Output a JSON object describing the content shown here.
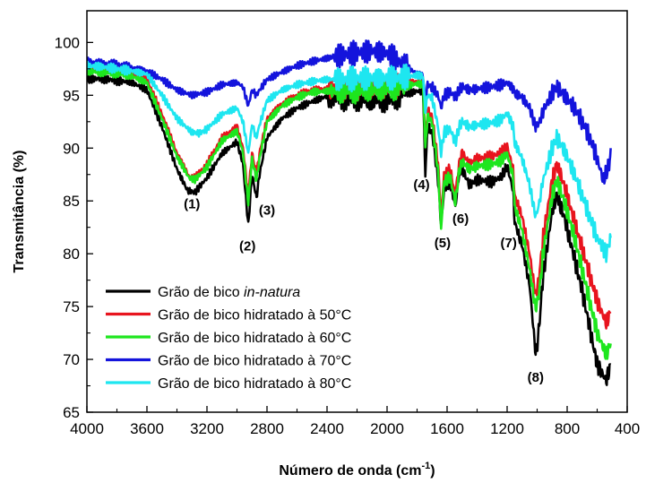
{
  "chart_data": {
    "type": "line",
    "title": "",
    "xlabel": "Número de onda (cm",
    "xlabel_sup": "-1",
    "xlabel_end": ")",
    "ylabel": "Transmitância (%)",
    "xlim": [
      4000,
      400
    ],
    "ylim": [
      65,
      103
    ],
    "x_ticks": [
      4000,
      3600,
      3200,
      2800,
      2400,
      2000,
      1600,
      1200,
      800,
      400
    ],
    "y_ticks": [
      65,
      70,
      75,
      80,
      85,
      90,
      95,
      100
    ],
    "grid": false,
    "legend_position": "bottom-left",
    "series": [
      {
        "name": "Grão de bico",
        "name_italic": "in-natura",
        "color": "#000000",
        "points": [
          [
            4000,
            96.5
          ],
          [
            3900,
            96.6
          ],
          [
            3800,
            96.4
          ],
          [
            3700,
            96.2
          ],
          [
            3600,
            95.5
          ],
          [
            3500,
            92.0
          ],
          [
            3400,
            88.0
          ],
          [
            3330,
            86.0
          ],
          [
            3280,
            85.8
          ],
          [
            3200,
            87.2
          ],
          [
            3100,
            89.5
          ],
          [
            3000,
            90.6
          ],
          [
            2960,
            88.5
          ],
          [
            2925,
            82.7
          ],
          [
            2900,
            87.5
          ],
          [
            2870,
            85.3
          ],
          [
            2850,
            87.5
          ],
          [
            2800,
            91.0
          ],
          [
            2700,
            92.8
          ],
          [
            2600,
            93.8
          ],
          [
            2500,
            94.4
          ],
          [
            2400,
            94.9
          ],
          [
            2300,
            94.7
          ],
          [
            2200,
            94.6
          ],
          [
            2100,
            94.5
          ],
          [
            2000,
            94.5
          ],
          [
            1900,
            95.0
          ],
          [
            1800,
            95.4
          ],
          [
            1760,
            95.3
          ],
          [
            1745,
            87.5
          ],
          [
            1730,
            92.0
          ],
          [
            1700,
            91.5
          ],
          [
            1660,
            87.0
          ],
          [
            1640,
            82.7
          ],
          [
            1620,
            86.0
          ],
          [
            1580,
            86.8
          ],
          [
            1545,
            84.4
          ],
          [
            1520,
            87.5
          ],
          [
            1500,
            88.0
          ],
          [
            1450,
            86.5
          ],
          [
            1400,
            87.0
          ],
          [
            1300,
            86.8
          ],
          [
            1240,
            87.3
          ],
          [
            1200,
            88.3
          ],
          [
            1160,
            86.0
          ],
          [
            1150,
            83.0
          ],
          [
            1100,
            80.8
          ],
          [
            1050,
            77.0
          ],
          [
            1010,
            70.5
          ],
          [
            990,
            72.5
          ],
          [
            960,
            78.0
          ],
          [
            900,
            84.0
          ],
          [
            870,
            85.6
          ],
          [
            820,
            83.5
          ],
          [
            750,
            79.5
          ],
          [
            700,
            76.5
          ],
          [
            650,
            73.0
          ],
          [
            600,
            69.5
          ],
          [
            540,
            68.0
          ],
          [
            510,
            69.5
          ]
        ]
      },
      {
        "name": "Grão de bico hidratado à 50°C",
        "color": "#e8141e",
        "points": [
          [
            4000,
            97.5
          ],
          [
            3900,
            97.4
          ],
          [
            3800,
            97.3
          ],
          [
            3700,
            97.0
          ],
          [
            3600,
            96.5
          ],
          [
            3500,
            93.2
          ],
          [
            3400,
            89.5
          ],
          [
            3320,
            87.3
          ],
          [
            3280,
            87.2
          ],
          [
            3200,
            88.5
          ],
          [
            3100,
            91.0
          ],
          [
            3000,
            92.0
          ],
          [
            2960,
            90.0
          ],
          [
            2925,
            85.5
          ],
          [
            2900,
            89.5
          ],
          [
            2870,
            87.5
          ],
          [
            2850,
            89.5
          ],
          [
            2800,
            92.8
          ],
          [
            2700,
            94.2
          ],
          [
            2600,
            95.0
          ],
          [
            2500,
            95.5
          ],
          [
            2400,
            95.6
          ],
          [
            2300,
            95.6
          ],
          [
            2200,
            95.6
          ],
          [
            2100,
            95.6
          ],
          [
            2000,
            95.8
          ],
          [
            1900,
            96.0
          ],
          [
            1800,
            96.3
          ],
          [
            1760,
            96.2
          ],
          [
            1745,
            90.5
          ],
          [
            1730,
            93.5
          ],
          [
            1700,
            93.0
          ],
          [
            1660,
            88.5
          ],
          [
            1640,
            83.5
          ],
          [
            1620,
            87.5
          ],
          [
            1580,
            88.0
          ],
          [
            1545,
            85.5
          ],
          [
            1520,
            88.5
          ],
          [
            1500,
            89.5
          ],
          [
            1450,
            88.5
          ],
          [
            1400,
            89.0
          ],
          [
            1300,
            89.2
          ],
          [
            1240,
            89.6
          ],
          [
            1200,
            90.2
          ],
          [
            1160,
            88.0
          ],
          [
            1150,
            85.5
          ],
          [
            1100,
            83.5
          ],
          [
            1050,
            80.0
          ],
          [
            1010,
            76.0
          ],
          [
            990,
            77.5
          ],
          [
            960,
            81.5
          ],
          [
            900,
            87.0
          ],
          [
            870,
            88.5
          ],
          [
            820,
            86.5
          ],
          [
            750,
            83.0
          ],
          [
            700,
            80.5
          ],
          [
            650,
            78.0
          ],
          [
            600,
            75.5
          ],
          [
            540,
            73.5
          ],
          [
            510,
            74.5
          ]
        ]
      },
      {
        "name": "Grão de bico hidratado à 60°C",
        "color": "#1ee61e",
        "points": [
          [
            4000,
            97.3
          ],
          [
            3900,
            97.2
          ],
          [
            3800,
            97.1
          ],
          [
            3700,
            96.8
          ],
          [
            3600,
            96.2
          ],
          [
            3500,
            92.8
          ],
          [
            3400,
            89.2
          ],
          [
            3320,
            87.2
          ],
          [
            3280,
            87.0
          ],
          [
            3200,
            88.2
          ],
          [
            3100,
            90.7
          ],
          [
            3000,
            91.6
          ],
          [
            2960,
            89.6
          ],
          [
            2925,
            84.8
          ],
          [
            2900,
            89.0
          ],
          [
            2870,
            87.0
          ],
          [
            2850,
            89.0
          ],
          [
            2800,
            92.5
          ],
          [
            2700,
            94.0
          ],
          [
            2600,
            94.8
          ],
          [
            2500,
            95.3
          ],
          [
            2400,
            95.4
          ],
          [
            2300,
            95.4
          ],
          [
            2200,
            95.4
          ],
          [
            2100,
            95.5
          ],
          [
            2000,
            95.6
          ],
          [
            1900,
            95.8
          ],
          [
            1800,
            96.1
          ],
          [
            1760,
            96.0
          ],
          [
            1745,
            90.0
          ],
          [
            1730,
            93.0
          ],
          [
            1700,
            92.5
          ],
          [
            1660,
            87.8
          ],
          [
            1640,
            82.3
          ],
          [
            1620,
            86.8
          ],
          [
            1580,
            87.3
          ],
          [
            1545,
            84.8
          ],
          [
            1520,
            87.8
          ],
          [
            1500,
            88.7
          ],
          [
            1450,
            88.0
          ],
          [
            1400,
            88.3
          ],
          [
            1300,
            88.5
          ],
          [
            1240,
            88.8
          ],
          [
            1200,
            89.5
          ],
          [
            1160,
            87.3
          ],
          [
            1150,
            84.5
          ],
          [
            1100,
            82.2
          ],
          [
            1050,
            78.5
          ],
          [
            1010,
            74.8
          ],
          [
            990,
            76.0
          ],
          [
            960,
            80.0
          ],
          [
            900,
            85.5
          ],
          [
            870,
            87.0
          ],
          [
            820,
            85.0
          ],
          [
            750,
            81.5
          ],
          [
            700,
            78.5
          ],
          [
            650,
            75.5
          ],
          [
            600,
            72.5
          ],
          [
            540,
            70.5
          ],
          [
            510,
            71.5
          ]
        ]
      },
      {
        "name": "Grão de bico hidratado à 70°C",
        "color": "#1414dc",
        "points": [
          [
            4000,
            98.2
          ],
          [
            3900,
            98.0
          ],
          [
            3800,
            97.9
          ],
          [
            3700,
            97.6
          ],
          [
            3600,
            97.3
          ],
          [
            3500,
            96.5
          ],
          [
            3400,
            95.5
          ],
          [
            3300,
            95.0
          ],
          [
            3200,
            95.3
          ],
          [
            3100,
            96.0
          ],
          [
            3000,
            96.2
          ],
          [
            2960,
            95.8
          ],
          [
            2925,
            94.0
          ],
          [
            2900,
            95.5
          ],
          [
            2870,
            95.0
          ],
          [
            2850,
            95.5
          ],
          [
            2800,
            96.5
          ],
          [
            2700,
            97.2
          ],
          [
            2600,
            97.8
          ],
          [
            2500,
            98.2
          ],
          [
            2400,
            98.5
          ],
          [
            2300,
            98.8
          ],
          [
            2200,
            99.0
          ],
          [
            2100,
            99.2
          ],
          [
            2000,
            99.0
          ],
          [
            1900,
            98.0
          ],
          [
            1800,
            97.0
          ],
          [
            1760,
            96.8
          ],
          [
            1745,
            94.5
          ],
          [
            1730,
            96.0
          ],
          [
            1700,
            95.8
          ],
          [
            1660,
            95.0
          ],
          [
            1640,
            93.8
          ],
          [
            1620,
            95.0
          ],
          [
            1580,
            95.3
          ],
          [
            1545,
            94.8
          ],
          [
            1520,
            95.5
          ],
          [
            1500,
            95.8
          ],
          [
            1450,
            95.5
          ],
          [
            1400,
            95.6
          ],
          [
            1300,
            95.8
          ],
          [
            1240,
            96.0
          ],
          [
            1200,
            96.2
          ],
          [
            1160,
            95.6
          ],
          [
            1150,
            95.2
          ],
          [
            1100,
            94.8
          ],
          [
            1050,
            93.8
          ],
          [
            1010,
            92.0
          ],
          [
            990,
            92.3
          ],
          [
            960,
            93.5
          ],
          [
            900,
            95.2
          ],
          [
            870,
            95.8
          ],
          [
            820,
            95.0
          ],
          [
            750,
            93.8
          ],
          [
            700,
            92.5
          ],
          [
            650,
            91.0
          ],
          [
            600,
            89.0
          ],
          [
            560,
            87.0
          ],
          [
            520,
            88.5
          ],
          [
            510,
            90.0
          ]
        ]
      },
      {
        "name": "Grão de bico hidratado à 80°C",
        "color": "#1ee6f0",
        "points": [
          [
            4000,
            97.8
          ],
          [
            3900,
            97.7
          ],
          [
            3800,
            97.5
          ],
          [
            3700,
            97.3
          ],
          [
            3600,
            97.0
          ],
          [
            3500,
            95.0
          ],
          [
            3400,
            92.8
          ],
          [
            3300,
            91.5
          ],
          [
            3250,
            91.4
          ],
          [
            3200,
            91.8
          ],
          [
            3100,
            93.2
          ],
          [
            3000,
            93.8
          ],
          [
            2960,
            92.5
          ],
          [
            2925,
            89.5
          ],
          [
            2900,
            92.2
          ],
          [
            2870,
            91.0
          ],
          [
            2850,
            92.2
          ],
          [
            2800,
            94.5
          ],
          [
            2700,
            95.5
          ],
          [
            2600,
            96.0
          ],
          [
            2500,
            96.3
          ],
          [
            2400,
            96.5
          ],
          [
            2300,
            96.5
          ],
          [
            2200,
            96.6
          ],
          [
            2100,
            96.6
          ],
          [
            2000,
            96.6
          ],
          [
            1900,
            96.7
          ],
          [
            1800,
            96.9
          ],
          [
            1760,
            96.8
          ],
          [
            1745,
            93.5
          ],
          [
            1730,
            95.0
          ],
          [
            1700,
            94.8
          ],
          [
            1660,
            92.0
          ],
          [
            1640,
            89.5
          ],
          [
            1620,
            91.5
          ],
          [
            1580,
            91.8
          ],
          [
            1545,
            90.5
          ],
          [
            1520,
            92.0
          ],
          [
            1500,
            92.5
          ],
          [
            1450,
            92.0
          ],
          [
            1400,
            92.2
          ],
          [
            1300,
            92.4
          ],
          [
            1240,
            92.7
          ],
          [
            1200,
            93.3
          ],
          [
            1160,
            92.0
          ],
          [
            1150,
            90.5
          ],
          [
            1100,
            89.0
          ],
          [
            1050,
            86.5
          ],
          [
            1010,
            83.5
          ],
          [
            990,
            84.5
          ],
          [
            960,
            87.0
          ],
          [
            900,
            90.0
          ],
          [
            870,
            91.0
          ],
          [
            820,
            89.8
          ],
          [
            750,
            87.5
          ],
          [
            700,
            85.5
          ],
          [
            650,
            83.5
          ],
          [
            600,
            81.5
          ],
          [
            540,
            80.0
          ],
          [
            510,
            81.5
          ]
        ]
      }
    ],
    "annotations": [
      {
        "label": "(1)",
        "x": 3300,
        "y": 84.3
      },
      {
        "label": "(2)",
        "x": 2930,
        "y": 80.3
      },
      {
        "label": "(3)",
        "x": 2800,
        "y": 83.7
      },
      {
        "label": "(4)",
        "x": 1770,
        "y": 86.1
      },
      {
        "label": "(5)",
        "x": 1630,
        "y": 80.6
      },
      {
        "label": "(6)",
        "x": 1510,
        "y": 82.9
      },
      {
        "label": "(7)",
        "x": 1190,
        "y": 80.6
      },
      {
        "label": "(8)",
        "x": 1010,
        "y": 67.9
      }
    ]
  }
}
